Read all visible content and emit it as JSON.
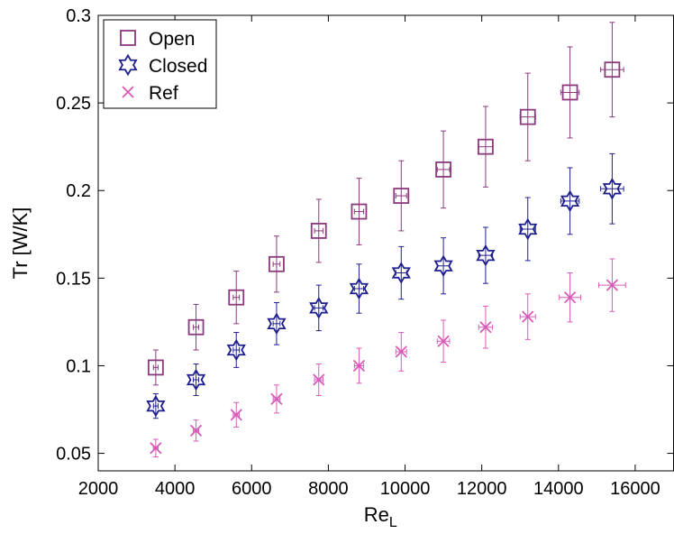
{
  "chart_data": {
    "type": "scatter",
    "title": "",
    "xlabel": "Re",
    "xlabel_sub": "L",
    "ylabel": "Tr [W/K]",
    "xlim": [
      2000,
      17000
    ],
    "ylim": [
      0.04,
      0.3
    ],
    "xticks": [
      2000,
      4000,
      6000,
      8000,
      10000,
      12000,
      14000,
      16000
    ],
    "xtick_labels": [
      "2000",
      "4000",
      "6000",
      "8000",
      "10000",
      "12000",
      "14000",
      "16000"
    ],
    "yticks": [
      0.05,
      0.1,
      0.15,
      0.2,
      0.25,
      0.3
    ],
    "ytick_labels": [
      "0.05",
      "0.1",
      "0.15",
      "0.2",
      "0.25",
      "0.3"
    ],
    "grid": false,
    "legend_position": "top-left",
    "series": [
      {
        "name": "Open",
        "marker": "square",
        "color": "#8b3a7d",
        "x": [
          3500,
          4550,
          5600,
          6650,
          7750,
          8800,
          9900,
          11000,
          12100,
          13200,
          14300,
          15400
        ],
        "y": [
          0.099,
          0.122,
          0.139,
          0.158,
          0.177,
          0.188,
          0.197,
          0.212,
          0.225,
          0.242,
          0.256,
          0.269
        ],
        "yerr": [
          0.01,
          0.013,
          0.015,
          0.016,
          0.018,
          0.019,
          0.02,
          0.022,
          0.023,
          0.025,
          0.026,
          0.027
        ],
        "xerr": [
          60,
          70,
          80,
          90,
          110,
          120,
          140,
          160,
          180,
          200,
          240,
          300
        ]
      },
      {
        "name": "Closed",
        "marker": "hexagram",
        "color": "#1f1f8f",
        "x": [
          3500,
          4550,
          5600,
          6650,
          7750,
          8800,
          9900,
          11000,
          12100,
          13200,
          14300,
          15400
        ],
        "y": [
          0.077,
          0.092,
          0.109,
          0.124,
          0.133,
          0.144,
          0.153,
          0.157,
          0.163,
          0.178,
          0.194,
          0.201
        ],
        "yerr": [
          0.007,
          0.009,
          0.01,
          0.012,
          0.013,
          0.014,
          0.015,
          0.016,
          0.016,
          0.018,
          0.019,
          0.02
        ],
        "xerr": [
          60,
          70,
          80,
          90,
          110,
          120,
          140,
          160,
          180,
          200,
          240,
          300
        ]
      },
      {
        "name": "Ref",
        "marker": "x",
        "color": "#d85bb8",
        "x": [
          3500,
          4550,
          5600,
          6650,
          7750,
          8800,
          9900,
          11000,
          12100,
          13200,
          14300,
          15400
        ],
        "y": [
          0.053,
          0.063,
          0.072,
          0.081,
          0.092,
          0.1,
          0.108,
          0.114,
          0.122,
          0.128,
          0.139,
          0.146
        ],
        "yerr": [
          0.005,
          0.006,
          0.007,
          0.008,
          0.009,
          0.01,
          0.011,
          0.012,
          0.012,
          0.013,
          0.014,
          0.015
        ],
        "xerr": [
          60,
          70,
          80,
          90,
          110,
          120,
          140,
          160,
          180,
          200,
          280,
          350
        ]
      }
    ]
  }
}
